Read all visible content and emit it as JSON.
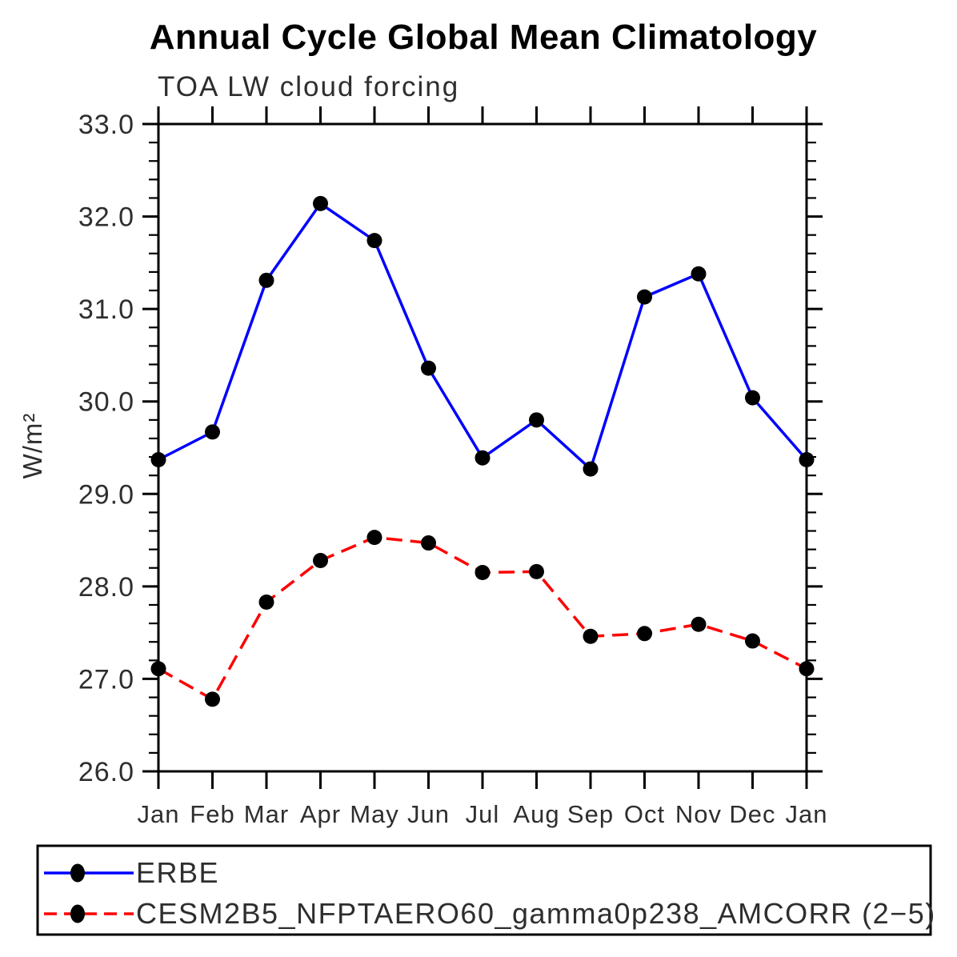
{
  "title": "Annual Cycle Global Mean Climatology",
  "subtitle": "TOA LW cloud forcing",
  "ylabel": "W/m²",
  "chart_data": {
    "type": "line",
    "x_categories": [
      "Jan",
      "Feb",
      "Mar",
      "Apr",
      "May",
      "Jun",
      "Jul",
      "Aug",
      "Sep",
      "Oct",
      "Nov",
      "Dec",
      "Jan"
    ],
    "xlabel": "",
    "ylabel": "W/m²",
    "ylim": [
      26.0,
      33.0
    ],
    "ytick_major_step": 1.0,
    "ytick_minor_step": 0.2,
    "ytick_labels": [
      "26.0",
      "27.0",
      "28.0",
      "29.0",
      "30.0",
      "31.0",
      "32.0",
      "33.0"
    ],
    "grid": false,
    "legend_position": "bottom-left-box",
    "series": [
      {
        "name": "ERBE",
        "color": "#0000ff",
        "line_style": "solid",
        "marker": "filled-circle",
        "marker_color": "#000000",
        "values": [
          29.37,
          29.67,
          31.31,
          32.14,
          31.74,
          30.36,
          29.39,
          29.8,
          29.27,
          31.13,
          31.38,
          30.04,
          29.37
        ]
      },
      {
        "name": "CESM2B5_NFPTAERO60_gamma0p238_AMCORR (2−5)",
        "color": "#ff0000",
        "line_style": "dashed",
        "marker": "filled-circle",
        "marker_color": "#000000",
        "values": [
          27.11,
          26.78,
          27.83,
          28.28,
          28.53,
          28.47,
          28.15,
          28.16,
          27.46,
          27.49,
          27.59,
          27.41,
          27.11
        ]
      }
    ]
  },
  "colors": {
    "axis": "#000000",
    "erbe_line": "#0000ff",
    "model_line": "#ff0000",
    "marker": "#000000",
    "title_text": "#000000",
    "label_text": "#2e2e2e"
  }
}
